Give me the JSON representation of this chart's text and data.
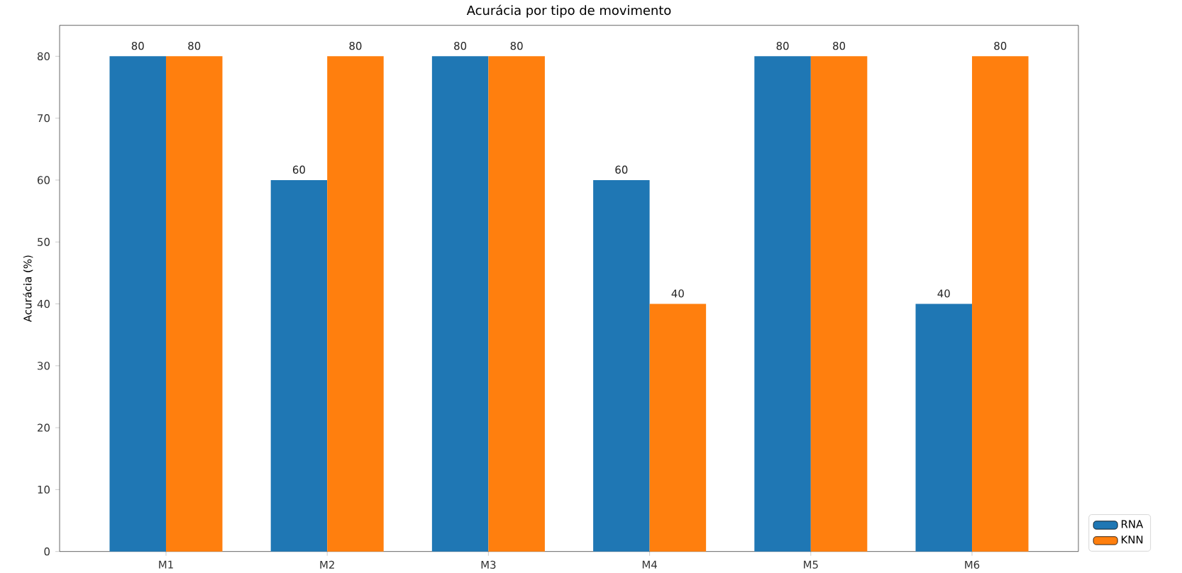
{
  "chart_data": {
    "type": "bar",
    "title": "Acurácia por tipo de movimento",
    "ylabel": "Acurácia (%)",
    "categories": [
      "M1",
      "M2",
      "M3",
      "M4",
      "M5",
      "M6"
    ],
    "series": [
      {
        "name": "RNA",
        "color": "#1f77b4",
        "values": [
          80,
          60,
          80,
          60,
          80,
          40
        ]
      },
      {
        "name": "KNN",
        "color": "#ff7f0e",
        "values": [
          80,
          80,
          80,
          40,
          80,
          80
        ]
      }
    ],
    "ylim": [
      0,
      85
    ],
    "yticks": [
      0,
      10,
      20,
      30,
      40,
      50,
      60,
      70,
      80
    ],
    "data_labels": true,
    "grid": false,
    "legend": "bottom right"
  }
}
